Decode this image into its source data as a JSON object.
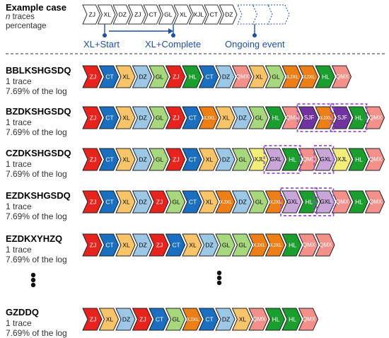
{
  "example": {
    "title": "Example case",
    "line_n": "n",
    "line_traces": " traces",
    "line_percentage": "percentage",
    "events": [
      "ZJ",
      "XL",
      "DZ",
      "ZJ",
      "CT",
      "GL",
      "XL",
      "XJL",
      "CT",
      "DZ"
    ],
    "ongoing_count": 3,
    "annotations": {
      "start": "XL+Start",
      "complete": "XL+Complete",
      "ongoing": "Ongoing event"
    }
  },
  "colors": {
    "ZJ": "#e8231e",
    "CT": "#1a6fc0",
    "XL": "#f7c46a",
    "DZ": "#9cc8e6",
    "GL": "#a8d87e",
    "HL": "#1a9e2e",
    "QMX": "#f4908a",
    "XJXL": "#ee7e16",
    "SJF": "#7033a0",
    "GXL": "#c8a6d8",
    "XJL": "#f3ee7a",
    "separator": "#333333",
    "annotation": "#1f4fa8",
    "highlight": "#9a4fd6"
  },
  "cases": [
    {
      "name": "BBLKSHGSDQ",
      "traces": "1 trace",
      "percent": "7.69% of the log",
      "events": [
        "ZJ",
        "CT",
        "XL",
        "DZ",
        "GL",
        "ZJ",
        "HL",
        "CT",
        "DZ",
        "QMX",
        "XL",
        "GL",
        "XJXL",
        "XJXL",
        "HL",
        "QMX"
      ],
      "highlights": []
    },
    {
      "name": "BZDKSHGSDQ",
      "traces": "1 trace",
      "percent": "7.69% of the log",
      "events": [
        "ZJ",
        "CT",
        "XL",
        "DZ",
        "GL",
        "ZJ",
        "CT",
        "XJXL",
        "XL",
        "DZ",
        "GL",
        "HL",
        "QMX",
        "SJF",
        "XJXL",
        "SJF",
        "HL",
        "QMX"
      ],
      "highlights": [
        [
          13,
          14
        ],
        [
          15,
          16
        ]
      ]
    },
    {
      "name": "CZDKSHGSDQ",
      "traces": "1 trace",
      "percent": "7.69% of the log",
      "events": [
        "ZJ",
        "CT",
        "XL",
        "DZ",
        "GL",
        "ZJ",
        "CT",
        "XL",
        "DZ",
        "GL",
        "XJL",
        "GXL",
        "HL",
        "QMX",
        "GXL",
        "XJL",
        "HL",
        "QMX"
      ],
      "highlights": [
        [
          11,
          12
        ],
        [
          14,
          14
        ]
      ]
    },
    {
      "name": "EZDKSHGSDQ",
      "traces": "1 trace",
      "percent": "7.69% of the log",
      "events": [
        "ZJ",
        "CT",
        "XL",
        "DZ",
        "ZJ",
        "GL",
        "CT",
        "XL",
        "XJXL",
        "DZ",
        "GL",
        "XJXL",
        "GXL",
        "HL",
        "GXL",
        "QMX",
        "HL",
        "QMX"
      ],
      "highlights": [
        [
          12,
          13
        ],
        [
          14,
          14
        ]
      ]
    },
    {
      "name": "EZDKXYHZQ",
      "traces": "1 trace",
      "percent": "7.69% of the log",
      "events": [
        "ZJ",
        "CT",
        "XL",
        "DZ",
        "ZJ",
        "CT",
        "XL",
        "DZ",
        "GL",
        "GL",
        "XJXL",
        "XJXL",
        "HL",
        "QMX",
        "QMX"
      ],
      "highlights": []
    },
    {
      "name": "GZDDQ",
      "traces": "1 trace",
      "percent": "7.69% of the log",
      "events": [
        "ZJ",
        "XL",
        "DZ",
        "ZJ",
        "CT",
        "GL",
        "XJXL",
        "CT",
        "DZ",
        "XL",
        "QMX",
        "HL",
        "HL",
        "QMX"
      ],
      "highlights": []
    }
  ]
}
